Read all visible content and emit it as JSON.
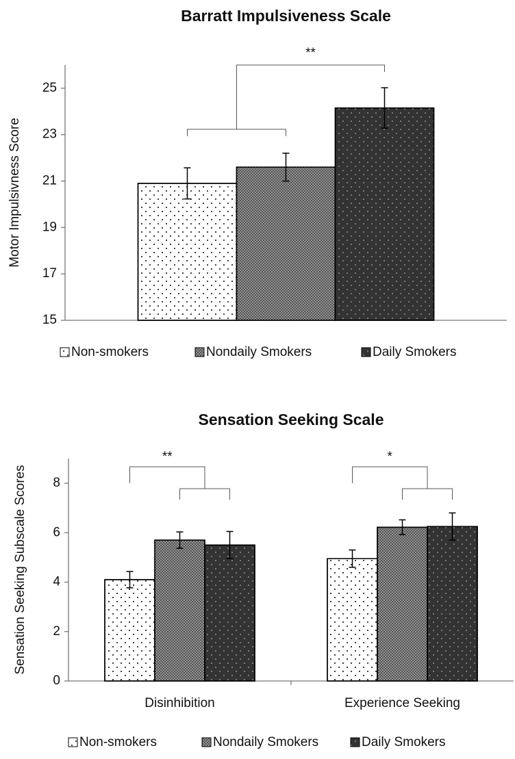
{
  "chart_data": [
    {
      "type": "bar",
      "title": "Barratt Impulsiveness Scale",
      "ylabel": "Motor Impulsivness  Score",
      "categories": [
        null
      ],
      "series": [
        {
          "name": "Non-smokers",
          "color": "#ffffff",
          "values": [
            20.9
          ],
          "errors": [
            0.67
          ]
        },
        {
          "name": "Nondaily Smokers",
          "color": "#555555",
          "values": [
            21.6
          ],
          "errors": [
            0.6
          ]
        },
        {
          "name": "Daily Smokers",
          "color": "#333333",
          "values": [
            24.15
          ],
          "errors": [
            0.87
          ]
        }
      ],
      "ylim": [
        15,
        26
      ],
      "yticks": [
        15,
        17,
        19,
        21,
        23,
        25
      ],
      "annotations": [
        "**"
      ],
      "legend": "bottom"
    },
    {
      "type": "bar",
      "title": "Sensation Seeking Scale",
      "ylabel": "Sensation Seeking Subscale Scores",
      "categories": [
        "Disinhibition",
        "Experience Seeking"
      ],
      "series": [
        {
          "name": "Non-smokers",
          "color": "#ffffff",
          "values": [
            4.1,
            4.95
          ],
          "errors": [
            0.33,
            0.35
          ]
        },
        {
          "name": "Nondaily Smokers",
          "color": "#555555",
          "values": [
            5.7,
            6.22
          ],
          "errors": [
            0.33,
            0.3
          ]
        },
        {
          "name": "Daily Smokers",
          "color": "#333333",
          "values": [
            5.5,
            6.25
          ],
          "errors": [
            0.55,
            0.55
          ]
        }
      ],
      "ylim": [
        0,
        9
      ],
      "yticks": [
        0,
        2,
        4,
        6,
        8
      ],
      "annotations": [
        "**",
        "*"
      ],
      "legend": "bottom"
    }
  ]
}
